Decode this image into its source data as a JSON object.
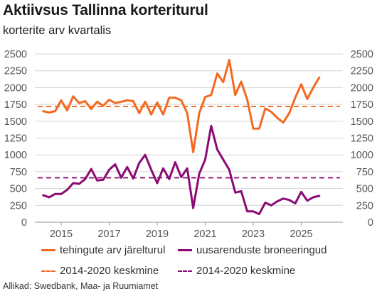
{
  "title": "Aktiivsus Tallinna korteriturul",
  "subtitle": "korterite arv kvartalis",
  "source": "Allikad: Swedbank, Maa- ja Ruumiamet",
  "colors": {
    "orange": "#f26a21",
    "purple": "#8b0a74",
    "grid": "#d4d4d4",
    "axis": "#9a9a9a"
  },
  "legend": {
    "s1": "tehingute arv järelturul",
    "s2": "uusarenduste broneeringud",
    "r1": "2014-2020 keskmine",
    "r2": "2014-2020 keskmine"
  },
  "chart_data": {
    "type": "line",
    "title": "Aktiivsus Tallinna korteriturul",
    "subtitle": "korterite arv kvartalis",
    "x_start": "2014 Q2",
    "x_ticks": [
      "2015",
      "2017",
      "2019",
      "2021",
      "2023",
      "2025"
    ],
    "y_ticks": [
      0,
      250,
      500,
      750,
      1000,
      1250,
      1500,
      1750,
      2000,
      2250,
      2500
    ],
    "ylim": [
      0,
      2500
    ],
    "y_axis_both_sides": true,
    "grid": "horizontal",
    "legend_position": "bottom",
    "series": [
      {
        "name": "tehingute arv järelturul",
        "color": "#f26a21",
        "style": "solid",
        "values": [
          1650,
          1630,
          1650,
          1810,
          1660,
          1870,
          1770,
          1800,
          1680,
          1790,
          1730,
          1820,
          1770,
          1790,
          1810,
          1800,
          1620,
          1790,
          1600,
          1780,
          1600,
          1850,
          1850,
          1810,
          1620,
          1040,
          1620,
          1860,
          1890,
          2210,
          2080,
          2410,
          1890,
          2090,
          1820,
          1390,
          1390,
          1690,
          1640,
          1550,
          1480,
          1620,
          1850,
          2050,
          1830,
          2000,
          2150
        ]
      },
      {
        "name": "uusarenduste broneeringud",
        "color": "#8b0a74",
        "style": "solid",
        "values": [
          400,
          370,
          420,
          420,
          480,
          580,
          570,
          640,
          790,
          620,
          630,
          780,
          860,
          660,
          820,
          650,
          880,
          1000,
          780,
          580,
          800,
          640,
          890,
          670,
          800,
          210,
          720,
          930,
          1430,
          1080,
          930,
          780,
          440,
          460,
          160,
          160,
          120,
          290,
          250,
          310,
          350,
          330,
          280,
          450,
          320,
          370,
          390
        ]
      },
      {
        "name": "2014-2020 keskmine",
        "color": "#f26a21",
        "style": "dashed",
        "value": 1720
      },
      {
        "name": "2014-2020 keskmine",
        "color": "#8b0a74",
        "style": "dashed",
        "value": 660
      }
    ]
  }
}
